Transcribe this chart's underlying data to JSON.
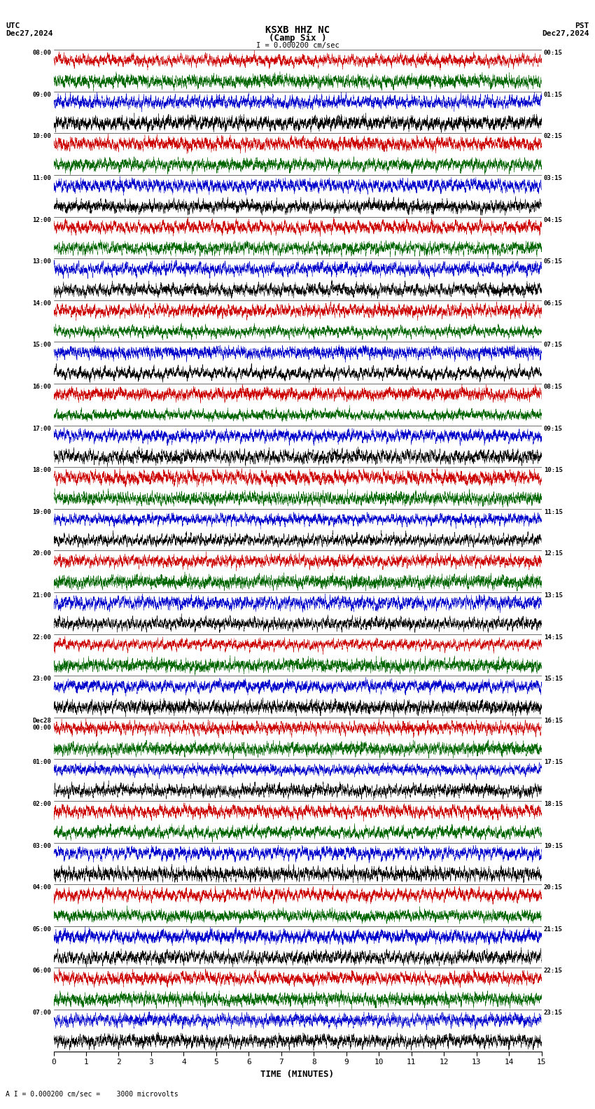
{
  "title_line1": "KSXB HHZ NC",
  "title_line2": "(Camp Six )",
  "scale_label": "I = 0.000200 cm/sec",
  "bottom_label": "A I = 0.000200 cm/sec =    3000 microvolts",
  "utc_label": "UTC",
  "utc_date": "Dec27,2024",
  "pst_label": "PST",
  "pst_date": "Dec27,2024",
  "xlabel": "TIME (MINUTES)",
  "xlim": [
    0,
    15
  ],
  "xticks": [
    0,
    1,
    2,
    3,
    4,
    5,
    6,
    7,
    8,
    9,
    10,
    11,
    12,
    13,
    14,
    15
  ],
  "background_color": "#ffffff",
  "trace_colors": [
    "#cc0000",
    "#006600",
    "#0000cc",
    "#000000"
  ],
  "num_row_pairs": 24,
  "left_labels": [
    "08:00",
    "09:00",
    "10:00",
    "11:00",
    "12:00",
    "13:00",
    "14:00",
    "15:00",
    "16:00",
    "17:00",
    "18:00",
    "19:00",
    "20:00",
    "21:00",
    "22:00",
    "23:00",
    "Dec28\n00:00",
    "01:00",
    "02:00",
    "03:00",
    "04:00",
    "05:00",
    "06:00",
    "07:00"
  ],
  "right_labels": [
    "00:15",
    "01:15",
    "02:15",
    "03:15",
    "04:15",
    "05:15",
    "06:15",
    "07:15",
    "08:15",
    "09:15",
    "10:15",
    "11:15",
    "12:15",
    "13:15",
    "14:15",
    "15:15",
    "16:15",
    "17:15",
    "18:15",
    "19:15",
    "20:15",
    "21:15",
    "22:15",
    "23:15"
  ],
  "noise_seed": 42
}
